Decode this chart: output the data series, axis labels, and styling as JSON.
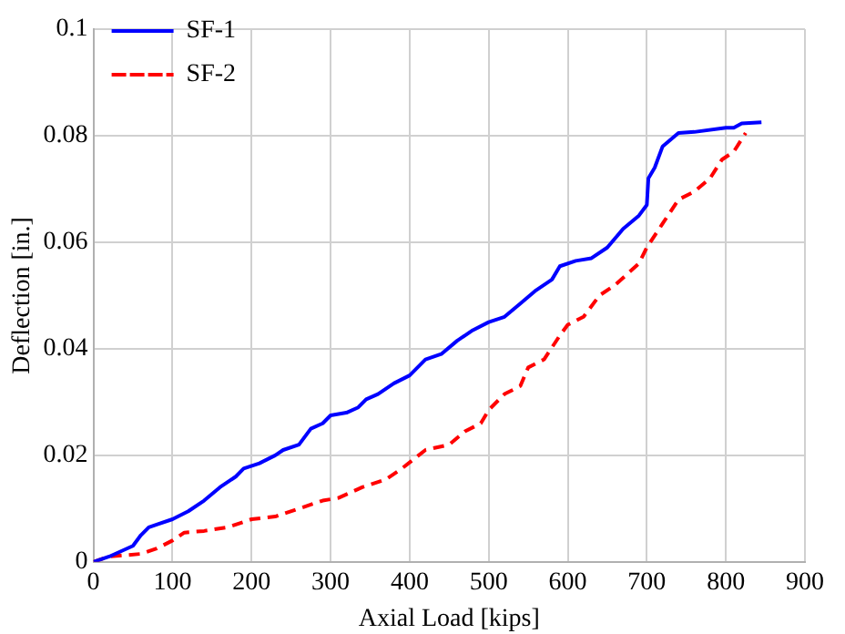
{
  "chart_data": {
    "type": "line",
    "xlabel": "Axial Load [kips]",
    "ylabel": "Deflection [in.]",
    "xlim": [
      0,
      900
    ],
    "xticks": [
      0,
      100,
      200,
      300,
      400,
      500,
      600,
      700,
      800,
      900
    ],
    "ylim": [
      0,
      0.1
    ],
    "yticks": [
      0,
      0.02,
      0.04,
      0.06,
      0.08,
      0.1
    ],
    "grid": true,
    "legend": "top left",
    "marker": "none",
    "series": [
      {
        "name": "SF-1",
        "color": "#0000ff",
        "line_style": "solid",
        "x": [
          0,
          20,
          50,
          60,
          70,
          80,
          100,
          120,
          140,
          160,
          180,
          190,
          210,
          230,
          240,
          260,
          275,
          290,
          300,
          320,
          335,
          345,
          360,
          380,
          400,
          420,
          440,
          460,
          480,
          500,
          520,
          540,
          560,
          580,
          590,
          610,
          630,
          650,
          670,
          690,
          700,
          702,
          710,
          720,
          740,
          760,
          800,
          810,
          820,
          845
        ],
        "values": [
          0,
          0.001,
          0.003,
          0.005,
          0.0065,
          0.007,
          0.008,
          0.0095,
          0.0115,
          0.014,
          0.016,
          0.0175,
          0.0185,
          0.02,
          0.021,
          0.022,
          0.025,
          0.026,
          0.0275,
          0.028,
          0.029,
          0.0305,
          0.0315,
          0.0335,
          0.035,
          0.038,
          0.039,
          0.0415,
          0.0435,
          0.045,
          0.046,
          0.0485,
          0.051,
          0.053,
          0.0555,
          0.0565,
          0.057,
          0.059,
          0.0625,
          0.065,
          0.067,
          0.072,
          0.074,
          0.078,
          0.0805,
          0.0807,
          0.0815,
          0.0815,
          0.0823,
          0.0825
        ]
      },
      {
        "name": "SF-2",
        "color": "#ff0000",
        "line_style": "dashed",
        "x": [
          0,
          20,
          60,
          80,
          100,
          115,
          140,
          170,
          200,
          230,
          260,
          290,
          310,
          340,
          370,
          390,
          420,
          450,
          470,
          490,
          500,
          520,
          540,
          550,
          570,
          590,
          600,
          620,
          640,
          660,
          690,
          700,
          720,
          740,
          760,
          780,
          795,
          810,
          825
        ],
        "values": [
          0,
          0.001,
          0.0015,
          0.0025,
          0.004,
          0.0055,
          0.0058,
          0.0065,
          0.008,
          0.0085,
          0.01,
          0.0115,
          0.012,
          0.014,
          0.0155,
          0.0175,
          0.021,
          0.022,
          0.0245,
          0.026,
          0.0285,
          0.0315,
          0.033,
          0.0365,
          0.038,
          0.0425,
          0.0445,
          0.046,
          0.05,
          0.052,
          0.056,
          0.059,
          0.0635,
          0.068,
          0.0695,
          0.072,
          0.0755,
          0.077,
          0.0805
        ]
      }
    ]
  }
}
